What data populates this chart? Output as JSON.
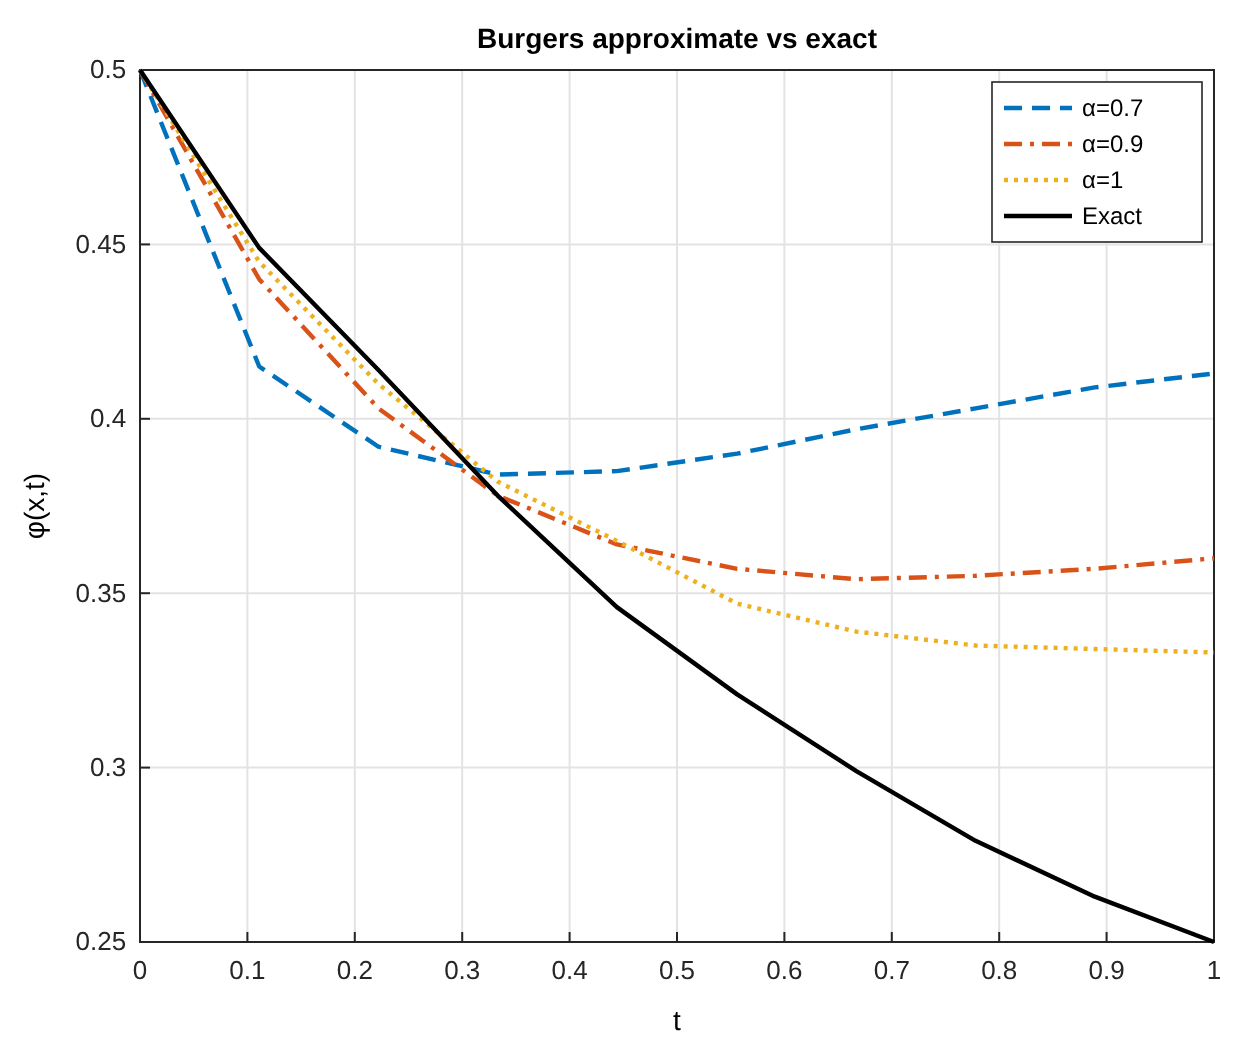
{
  "chart_data": {
    "type": "line",
    "title": "Burgers approximate vs exact",
    "xlabel": "t",
    "ylabel": "φ(x,t)",
    "x": [
      0,
      0.111,
      0.222,
      0.333,
      0.444,
      0.556,
      0.667,
      0.778,
      0.889,
      1
    ],
    "xlim": [
      0,
      1
    ],
    "xticks": [
      0,
      0.1,
      0.2,
      0.3,
      0.4,
      0.5,
      0.6,
      0.7,
      0.8,
      0.9,
      1
    ],
    "ylim": [
      0.25,
      0.5
    ],
    "yticks": [
      0.25,
      0.3,
      0.35,
      0.4,
      0.45,
      0.5
    ],
    "grid": true,
    "legend": "top right",
    "series": [
      {
        "name": "α=0.7",
        "color": "#0072bd",
        "line_style": "dashed",
        "values": [
          0.5,
          0.415,
          0.392,
          0.384,
          0.385,
          0.39,
          0.397,
          0.403,
          0.409,
          0.413
        ]
      },
      {
        "name": "α=0.9",
        "color": "#d95319",
        "line_style": "dashdot",
        "values": [
          0.5,
          0.44,
          0.403,
          0.378,
          0.364,
          0.357,
          0.354,
          0.355,
          0.357,
          0.36
        ]
      },
      {
        "name": "α=1",
        "color": "#edb120",
        "line_style": "dotted",
        "values": [
          0.5,
          0.445,
          0.41,
          0.382,
          0.365,
          0.347,
          0.339,
          0.335,
          0.334,
          0.333
        ]
      },
      {
        "name": "Exact",
        "color": "#000000",
        "line_style": "solid",
        "values": [
          0.5,
          0.449,
          0.414,
          0.378,
          0.346,
          0.321,
          0.299,
          0.279,
          0.263,
          0.25
        ]
      }
    ]
  }
}
